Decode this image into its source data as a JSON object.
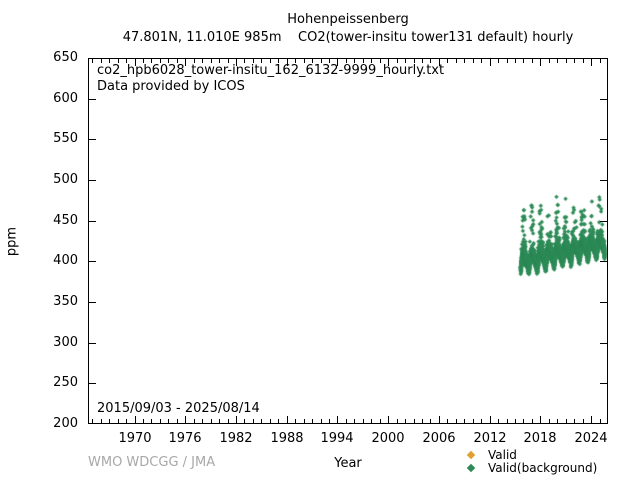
{
  "header": {
    "title": "Hohenpeissenberg",
    "subtitle": "47.801N, 11.010E 985m    CO2(tower-insitu tower131 default) hourly"
  },
  "plot": {
    "annotations": {
      "filename": "co2_hpb6028_tower-insitu_162_6132-9999_hourly.txt",
      "provider": "Data provided by ICOS",
      "date_range": "2015/09/03 - 2025/08/14"
    }
  },
  "footer": {
    "credit": "WMO WDCGG / JMA"
  },
  "legend": {
    "items": [
      {
        "label": "Valid",
        "color": "#e0a030",
        "marker": "diamond"
      },
      {
        "label": "Valid(background)",
        "color": "#2e8b57",
        "marker": "diamond"
      }
    ]
  },
  "chart_data": {
    "type": "scatter",
    "title": "Hohenpeissenberg",
    "subtitle": "47.801N, 11.010E 985m    CO2(tower-insitu tower131 default) hourly",
    "xlabel": "Year",
    "ylabel": "ppm",
    "xlim": [
      1964.5,
      2026
    ],
    "ylim": [
      200,
      650
    ],
    "x_major_ticks": [
      1970,
      1976,
      1982,
      1988,
      1994,
      2000,
      2006,
      2012,
      2018,
      2024
    ],
    "x_minor_tick_interval": 1,
    "y_tick_step": 50,
    "y_ticks": [
      200,
      250,
      300,
      350,
      400,
      450,
      500,
      550,
      600,
      650
    ],
    "grid": false,
    "legend_position": "bottom-right",
    "series": [
      {
        "name": "Valid",
        "color": "#e0a030",
        "marker": "diamond",
        "visible_points": 0
      },
      {
        "name": "Valid(background)",
        "color": "#2e8b57",
        "marker": "diamond",
        "coverage_start_year": 2015.67,
        "coverage_end_year": 2025.62,
        "start_mean_ppm": 402,
        "end_mean_ppm": 424,
        "dense_band_low_ppm": 385,
        "dense_band_high_ppm": 455,
        "peak_ppm": 492,
        "seasonal_cycle": "annual summer drawdown lows and winter spike highs",
        "cadence": "hourly"
      }
    ]
  }
}
